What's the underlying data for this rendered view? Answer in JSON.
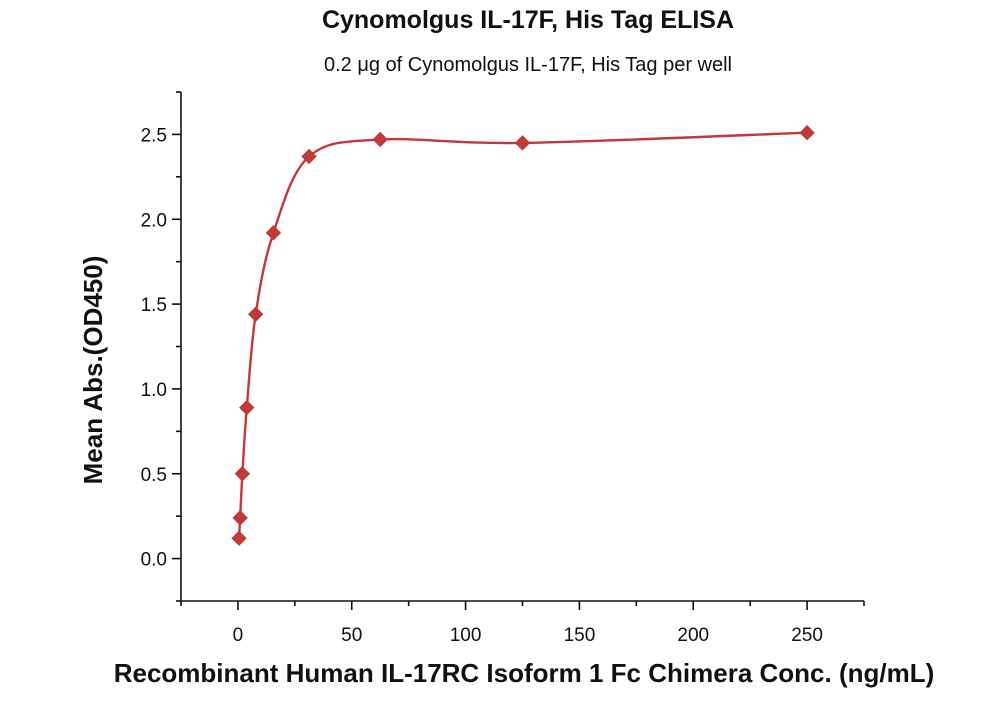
{
  "chart_data": {
    "type": "scatter",
    "title": "Cynomolgus IL-17F, His Tag ELISA",
    "subtitle": "0.2 μg of Cynomolgus IL-17F, His Tag per well",
    "xlabel": "Recombinant Human IL-17RC Isoform 1 Fc Chimera Conc. (ng/mL)",
    "ylabel": "Mean Abs.(OD450)",
    "xlim": [
      -25,
      275
    ],
    "ylim": [
      -0.25,
      2.75
    ],
    "x_ticks": [
      "0",
      "50",
      "100",
      "150",
      "200",
      "250"
    ],
    "y_ticks": [
      "0.0",
      "0.5",
      "1.0",
      "1.5",
      "2.0",
      "2.5"
    ],
    "grid": false,
    "marker": "diamond",
    "fit_line": true,
    "color": "#c0393b",
    "series": [
      {
        "x": [
          0.49,
          0.98,
          1.95,
          3.9,
          7.8,
          15.6,
          31.25,
          62.5,
          125,
          250
        ],
        "y": [
          0.12,
          0.24,
          0.5,
          0.89,
          1.44,
          1.92,
          2.37,
          2.47,
          2.45,
          2.51
        ]
      }
    ]
  }
}
